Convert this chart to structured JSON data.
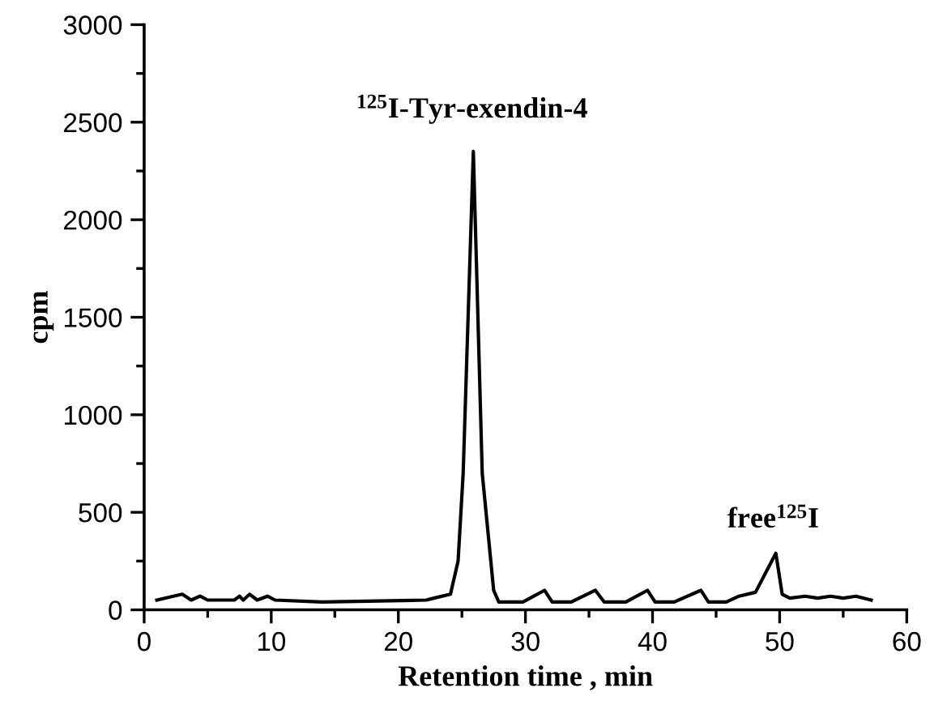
{
  "chart_data": {
    "type": "line",
    "xlabel": "Retention time , min",
    "ylabel": "cpm",
    "x": [
      1,
      3.0,
      3.7,
      4.4,
      5.0,
      7.1,
      7.5,
      7.8,
      8.3,
      8.9,
      9.7,
      10.3,
      14,
      22.2,
      22.8,
      24.1,
      24.7,
      25.1,
      25.9,
      26.6,
      27.5,
      27.9,
      29.8,
      31.5,
      32.1,
      33.6,
      35.5,
      36.2,
      37.9,
      39.6,
      40.2,
      41.7,
      43.8,
      44.4,
      45.8,
      46.8,
      48.1,
      49.7,
      50.2,
      50.8,
      52,
      53,
      54,
      55,
      56,
      57.2
    ],
    "values": [
      50,
      80,
      50,
      70,
      50,
      50,
      70,
      50,
      80,
      50,
      70,
      50,
      40,
      50,
      60,
      80,
      250,
      700,
      2350,
      700,
      100,
      40,
      40,
      100,
      40,
      40,
      100,
      40,
      40,
      100,
      40,
      40,
      100,
      40,
      40,
      70,
      90,
      290,
      80,
      60,
      70,
      60,
      70,
      60,
      70,
      50
    ],
    "color": "#000000",
    "xlim": [
      0,
      60
    ],
    "xticks": [
      0,
      10,
      20,
      30,
      40,
      50,
      60
    ],
    "ylim": [
      0,
      3000
    ],
    "yticks": [
      0,
      500,
      1000,
      1500,
      2000,
      2500,
      3000
    ],
    "grid": false,
    "marker": "none",
    "line_style": "solid",
    "annotations": [
      "$^{125}$I-Tyr-exendin-4",
      "free$^{125}$I"
    ]
  }
}
